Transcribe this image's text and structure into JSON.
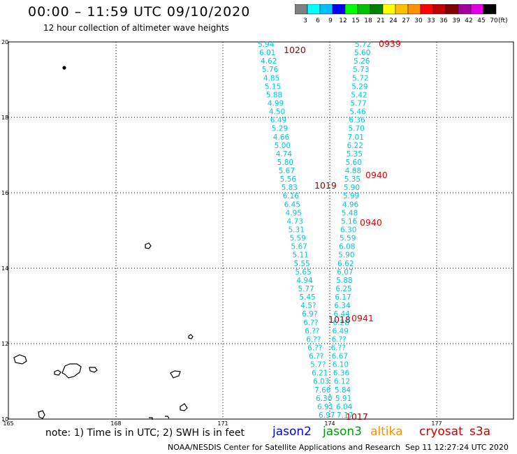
{
  "header": {
    "title": "00:00 – 11:59 UTC 09/10/2020",
    "subtitle": "12 hour collection of altimeter wave heights"
  },
  "colorbar": {
    "labels": [
      "3",
      "6",
      "9",
      "12",
      "15",
      "18",
      "21",
      "24",
      "27",
      "30",
      "33",
      "36",
      "39",
      "42",
      "45",
      "70"
    ],
    "unit": "(ft)",
    "colors": [
      "#808080",
      "#00ffff",
      "#00c0ff",
      "#0000ff",
      "#00ff00",
      "#00c000",
      "#008000",
      "#ffff00",
      "#ffc000",
      "#ff9000",
      "#ff0000",
      "#c00000",
      "#800000",
      "#a000a0",
      "#e000e0",
      "#000000"
    ]
  },
  "axes": {
    "lon_labels": [
      "165",
      "168",
      "171",
      "174",
      "177"
    ],
    "lat_labels": [
      "20",
      "18",
      "16",
      "14",
      "12",
      "10"
    ]
  },
  "track_colors": {
    "swh": "#00c8dc",
    "time_red": "#ee0000",
    "time_dark": "#990000"
  },
  "tracks": {
    "left": [
      "5.94",
      "6.01",
      "4.62",
      "5.76",
      "4.85",
      "5.15",
      "5.88",
      "4.99",
      "4.50",
      "6.49",
      "5.29",
      "4.66",
      "5.00",
      "4.74",
      "5.80",
      "5.67",
      "5.56",
      "5.83",
      "6.16",
      "6.45",
      "4.95",
      "4.73",
      "5.31",
      "5.59",
      "5.67",
      "5.11",
      "5.55",
      "5.65",
      "4.94",
      "5.77",
      "5.45",
      "4.5?",
      "6.9?",
      "6.??",
      "6.??",
      "6.??",
      "6.??",
      "6.??",
      "5.7?",
      "6.21",
      "6.03",
      "7.66",
      "6.30",
      "6.91",
      "6.97"
    ],
    "right": [
      "5.72",
      "5.60",
      "5.26",
      "5.73",
      "5.72",
      "5.29",
      "5.42",
      "5.77",
      "5.46",
      "6.36",
      "5.70",
      "7.01",
      "6.22",
      "5.35",
      "5.60",
      "4.88",
      "5.35",
      "5.90",
      "5.99",
      "4.96",
      "5.48",
      "5.16",
      "6.30",
      "5.59",
      "6.08",
      "5.90",
      "6.62",
      "6.07",
      "5.88",
      "6.25",
      "6.17",
      "6.34",
      "6.44",
      "6.28",
      "6.49",
      "6.??",
      "6.??",
      "6.67",
      "6.10",
      "6.36",
      "6.12",
      "5.84",
      "5.91",
      "6.04",
      "7.17"
    ]
  },
  "time_labels": [
    "0939",
    "1020",
    "0940",
    "1019",
    "0940",
    "0941",
    "1018",
    "1017"
  ],
  "footer": {
    "note": "note:  1) Time is in UTC;  2) SWH is in feet",
    "credit": "NOAA/NESDIS Center for Satellite Applications and Research",
    "timestamp": "Sep 11 12:27:24 UTC 2020",
    "satellites": [
      "jason2",
      "jason3",
      "altika",
      "cryosat",
      "s3a"
    ]
  }
}
